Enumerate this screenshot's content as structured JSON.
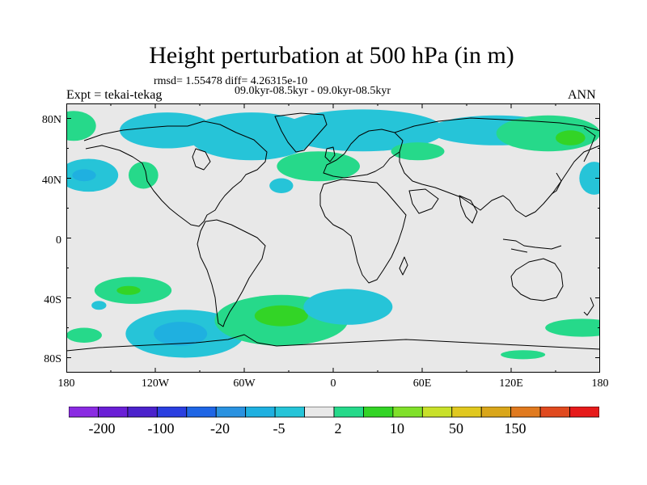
{
  "title": "Height perturbation at 500 hPa (in m)",
  "rmsd_text": "rmsd= 1.55478 diff= 4.26315e-10",
  "expt_text": "Expt = tekai-tekag",
  "period_text": "09.0kyr-08.5kyr - 09.0kyr-08.5kyr",
  "season": "ANN",
  "chart_data": {
    "type": "heatmap",
    "xlim": [
      -180,
      180
    ],
    "ylim": [
      -90,
      90
    ],
    "lat_ticks": [
      "80N",
      "40N",
      "0",
      "40S",
      "80S"
    ],
    "lon_ticks": [
      "180",
      "120W",
      "60W",
      "0",
      "60E",
      "120E",
      "180"
    ],
    "colorbar": {
      "colors": [
        "#8a2be2",
        "#6a1fd6",
        "#4b22cc",
        "#2a3fe0",
        "#1f66e5",
        "#2a92e0",
        "#1fb0e0",
        "#26c4d8",
        "#e8e8e8",
        "#26d98a",
        "#33d426",
        "#80e02a",
        "#c8e02a",
        "#e0c81f",
        "#d9a61a",
        "#e07a1f",
        "#e04a1f",
        "#e61a1a"
      ],
      "labels": [
        "-200",
        "-100",
        "-20",
        "-5",
        "2",
        "10",
        "50",
        "150"
      ]
    },
    "features": [
      {
        "kind": "negative",
        "lon": -112,
        "lat": 72,
        "rx": 32,
        "ry": 12
      },
      {
        "kind": "negative",
        "lon": -55,
        "lat": 68,
        "rx": 42,
        "ry": 16
      },
      {
        "kind": "negative",
        "lon": 20,
        "lat": 72,
        "rx": 55,
        "ry": 14
      },
      {
        "kind": "negative",
        "lon": 110,
        "lat": 72,
        "rx": 45,
        "ry": 10
      },
      {
        "kind": "positive",
        "lon": -175,
        "lat": 75,
        "rx": 15,
        "ry": 10
      },
      {
        "kind": "positive",
        "lon": 145,
        "lat": 70,
        "rx": 35,
        "ry": 12
      },
      {
        "kind": "positive",
        "lon": 160,
        "lat": 67,
        "rx": 10,
        "ry": 5,
        "level": 2
      },
      {
        "kind": "negative",
        "lon": -165,
        "lat": 42,
        "rx": 20,
        "ry": 11
      },
      {
        "kind": "negative",
        "lon": -168,
        "lat": 42,
        "rx": 8,
        "ry": 4,
        "level": 2
      },
      {
        "kind": "positive",
        "lon": -128,
        "lat": 42,
        "rx": 10,
        "ry": 9
      },
      {
        "kind": "positive",
        "lon": -10,
        "lat": 48,
        "rx": 28,
        "ry": 10
      },
      {
        "kind": "negative",
        "lon": -35,
        "lat": 35,
        "rx": 8,
        "ry": 5
      },
      {
        "kind": "positive",
        "lon": 57,
        "lat": 58,
        "rx": 18,
        "ry": 6
      },
      {
        "kind": "negative",
        "lon": 176,
        "lat": 40,
        "rx": 10,
        "ry": 11
      },
      {
        "kind": "positive",
        "lon": -135,
        "lat": -35,
        "rx": 26,
        "ry": 9
      },
      {
        "kind": "positive",
        "lon": -138,
        "lat": -35,
        "rx": 8,
        "ry": 3,
        "level": 2
      },
      {
        "kind": "negative",
        "lon": -158,
        "lat": -45,
        "rx": 5,
        "ry": 3
      },
      {
        "kind": "negative",
        "lon": -100,
        "lat": -64,
        "rx": 40,
        "ry": 16
      },
      {
        "kind": "negative",
        "lon": -103,
        "lat": -64,
        "rx": 18,
        "ry": 8,
        "level": 2
      },
      {
        "kind": "positive",
        "lon": -168,
        "lat": -65,
        "rx": 12,
        "ry": 5
      },
      {
        "kind": "positive",
        "lon": -35,
        "lat": -55,
        "rx": 45,
        "ry": 17
      },
      {
        "kind": "positive",
        "lon": -35,
        "lat": -52,
        "rx": 18,
        "ry": 7,
        "level": 2
      },
      {
        "kind": "negative",
        "lon": 10,
        "lat": -46,
        "rx": 30,
        "ry": 12
      },
      {
        "kind": "positive",
        "lon": 168,
        "lat": -60,
        "rx": 25,
        "ry": 6
      },
      {
        "kind": "positive",
        "lon": 128,
        "lat": -78,
        "rx": 15,
        "ry": 3
      }
    ]
  }
}
